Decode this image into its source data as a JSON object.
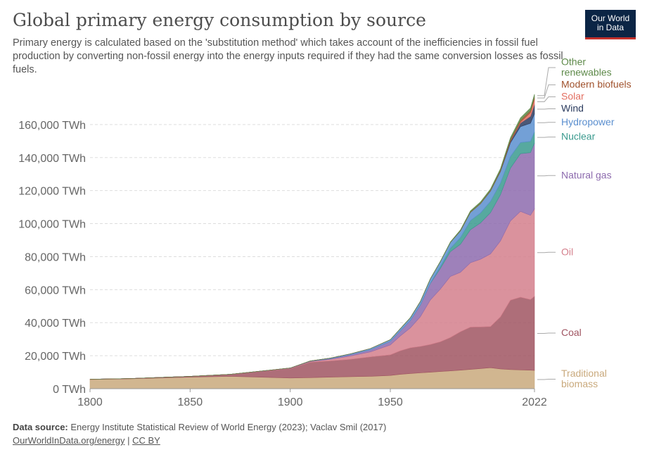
{
  "header": {
    "title": "Global primary energy consumption by source",
    "subtitle": "Primary energy is calculated based on the 'substitution method' which takes account of the inefficiencies in fossil fuel production by converting non-fossil energy into the energy inputs required if they had the same conversion losses as fossil fuels.",
    "logo_line1": "Our World",
    "logo_line2": "in Data"
  },
  "footer": {
    "source_label": "Data source:",
    "source_text": "Energy Institute Statistical Review of World Energy (2023); Vaclav Smil (2017)",
    "link_text": "OurWorldInData.org/energy",
    "separator": "|",
    "license": "CC BY"
  },
  "chart_data": {
    "type": "area",
    "stacked": true,
    "grid": true,
    "ylim": [
      0,
      180000
    ],
    "yticks": [
      0,
      20000,
      40000,
      60000,
      80000,
      100000,
      120000,
      140000,
      160000
    ],
    "ytick_labels": [
      "0 TWh",
      "20,000 TWh",
      "40,000 TWh",
      "60,000 TWh",
      "80,000 TWh",
      "100,000 TWh",
      "120,000 TWh",
      "140,000 TWh",
      "160,000 TWh"
    ],
    "xlim": [
      1800,
      2022
    ],
    "xticks": [
      1800,
      1850,
      1900,
      1950,
      2022
    ],
    "xtick_labels": [
      "1800",
      "1850",
      "1900",
      "1950",
      "2022"
    ],
    "x": [
      1800,
      1820,
      1850,
      1870,
      1900,
      1910,
      1920,
      1930,
      1940,
      1950,
      1955,
      1960,
      1965,
      1970,
      1975,
      1980,
      1985,
      1990,
      1995,
      2000,
      2005,
      2010,
      2015,
      2020,
      2022
    ],
    "series": [
      {
        "name": "Traditional biomass",
        "color": "#c9a97c",
        "label_lines": [
          "Traditional",
          "biomass"
        ],
        "values": [
          5600,
          6000,
          7000,
          7500,
          6500,
          6700,
          7000,
          7300,
          7500,
          8000,
          8700,
          9200,
          9600,
          10000,
          10400,
          10800,
          11200,
          11700,
          12200,
          12700,
          12000,
          11600,
          11400,
          11200,
          11100
        ]
      },
      {
        "name": "Coal",
        "color": "#a05562",
        "label_lines": [
          "Coal"
        ],
        "values": [
          100,
          200,
          500,
          1200,
          5700,
          9400,
          9800,
          10500,
          11800,
          12500,
          14300,
          15600,
          16000,
          16800,
          18000,
          20200,
          23300,
          25600,
          25200,
          24900,
          31500,
          42000,
          44000,
          42800,
          44800
        ]
      },
      {
        "name": "Oil",
        "color": "#d47f8c",
        "label_lines": [
          "Oil"
        ],
        "values": [
          0,
          0,
          0,
          0,
          200,
          400,
          1000,
          2000,
          3000,
          6000,
          9000,
          12000,
          18000,
          27000,
          32000,
          37000,
          36000,
          39000,
          41000,
          44000,
          46000,
          48000,
          52000,
          51000,
          53000
        ]
      },
      {
        "name": "Natural gas",
        "color": "#8d6bae",
        "label_lines": [
          "Natural gas"
        ],
        "values": [
          0,
          0,
          0,
          0,
          100,
          200,
          400,
          800,
          1200,
          2100,
          3000,
          4500,
          7000,
          10000,
          12500,
          15000,
          17000,
          20000,
          22000,
          25000,
          28000,
          32000,
          35000,
          38000,
          40000
        ]
      },
      {
        "name": "Nuclear",
        "color": "#3a9a8e",
        "label_lines": [
          "Nuclear"
        ],
        "values": [
          0,
          0,
          0,
          0,
          0,
          0,
          0,
          0,
          0,
          0,
          0,
          10,
          100,
          200,
          1000,
          2000,
          4000,
          5500,
          6000,
          6800,
          7000,
          7000,
          6700,
          6800,
          6700
        ]
      },
      {
        "name": "Hydropower",
        "color": "#5b8fcf",
        "label_lines": [
          "Hydropower"
        ],
        "values": [
          0,
          0,
          0,
          0,
          20,
          100,
          300,
          500,
          800,
          1100,
          1400,
          1700,
          2100,
          2600,
          3100,
          3600,
          4100,
          5000,
          5600,
          6300,
          7000,
          8300,
          9600,
          11000,
          11000
        ]
      },
      {
        "name": "Wind",
        "color": "#2b3b5e",
        "label_lines": [
          "Wind"
        ],
        "values": [
          0,
          0,
          0,
          0,
          0,
          0,
          0,
          0,
          0,
          0,
          0,
          0,
          0,
          0,
          0,
          0,
          0,
          10,
          20,
          80,
          270,
          900,
          2200,
          4200,
          5500
        ]
      },
      {
        "name": "Solar",
        "color": "#e36f61",
        "label_lines": [
          "Solar"
        ],
        "values": [
          0,
          0,
          0,
          0,
          0,
          0,
          0,
          0,
          0,
          0,
          0,
          0,
          0,
          0,
          0,
          0,
          0,
          0,
          0,
          5,
          10,
          80,
          700,
          2300,
          3400
        ]
      },
      {
        "name": "Modern biofuels",
        "color": "#a0522d",
        "label_lines": [
          "Modern biofuels"
        ],
        "values": [
          0,
          0,
          0,
          0,
          0,
          0,
          0,
          0,
          0,
          0,
          0,
          0,
          0,
          0,
          0,
          0,
          100,
          200,
          250,
          300,
          500,
          1000,
          1100,
          1150,
          1200
        ]
      },
      {
        "name": "Other renewables",
        "color": "#5e8a4a",
        "label_lines": [
          "Other",
          "renewables"
        ],
        "values": [
          0,
          0,
          0,
          0,
          0,
          0,
          0,
          0,
          0,
          10,
          20,
          50,
          100,
          150,
          250,
          350,
          500,
          700,
          800,
          900,
          1000,
          1200,
          1400,
          1600,
          1700
        ]
      }
    ]
  }
}
